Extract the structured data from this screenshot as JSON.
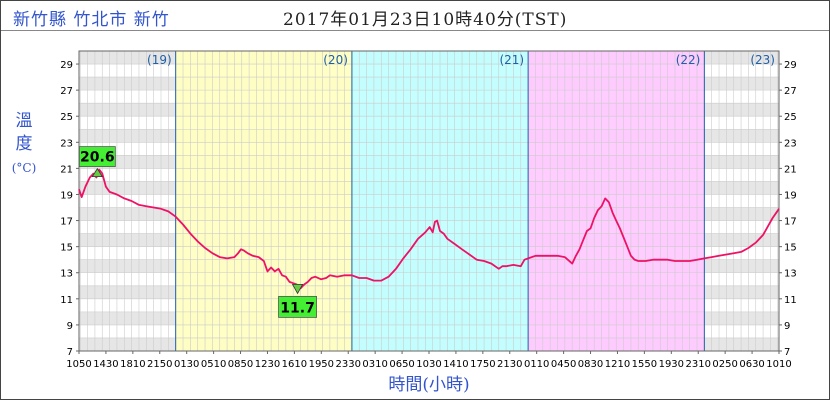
{
  "header": {
    "station": "新竹縣 竹北市 新竹",
    "timestamp": "2017年01月23日10時40分(TST)"
  },
  "chart_data": {
    "type": "line",
    "ylabel_chars": [
      "溫",
      "度"
    ],
    "unit": "(°C)",
    "xlabel": "時間(小時)",
    "ylim": [
      7,
      30
    ],
    "yticks": [
      7,
      9,
      11,
      13,
      15,
      17,
      19,
      21,
      23,
      25,
      27,
      29
    ],
    "xlim_hours": [
      10.833,
      106.167
    ],
    "xticks": [
      {
        "h": 10.833,
        "label": "1050"
      },
      {
        "h": 14.5,
        "label": "1430"
      },
      {
        "h": 18.167,
        "label": "1810"
      },
      {
        "h": 21.833,
        "label": "2150"
      },
      {
        "h": 25.5,
        "label": "0130"
      },
      {
        "h": 29.167,
        "label": "0510"
      },
      {
        "h": 32.833,
        "label": "0850"
      },
      {
        "h": 36.5,
        "label": "1230"
      },
      {
        "h": 40.167,
        "label": "1610"
      },
      {
        "h": 43.833,
        "label": "1950"
      },
      {
        "h": 47.5,
        "label": "2330"
      },
      {
        "h": 51.167,
        "label": "0310"
      },
      {
        "h": 54.833,
        "label": "0650"
      },
      {
        "h": 58.5,
        "label": "1030"
      },
      {
        "h": 62.167,
        "label": "1410"
      },
      {
        "h": 65.833,
        "label": "1750"
      },
      {
        "h": 69.5,
        "label": "2130"
      },
      {
        "h": 73.167,
        "label": "0110"
      },
      {
        "h": 76.833,
        "label": "0450"
      },
      {
        "h": 80.5,
        "label": "0830"
      },
      {
        "h": 84.167,
        "label": "1210"
      },
      {
        "h": 87.833,
        "label": "1550"
      },
      {
        "h": 91.5,
        "label": "1930"
      },
      {
        "h": 95.167,
        "label": "2310"
      },
      {
        "h": 98.833,
        "label": "0250"
      },
      {
        "h": 102.5,
        "label": "0630"
      },
      {
        "h": 106.167,
        "label": "1010"
      }
    ],
    "days": [
      {
        "label": "(19)",
        "start": 10.833,
        "end": 24,
        "color": "#ffffff"
      },
      {
        "label": "(20)",
        "start": 24,
        "end": 48,
        "color": "#ffffc0"
      },
      {
        "label": "(21)",
        "start": 48,
        "end": 72,
        "color": "#c0ffff"
      },
      {
        "label": "(22)",
        "start": 72,
        "end": 96,
        "color": "#ffc8ff"
      },
      {
        "label": "(23)",
        "start": 96,
        "end": 106.167,
        "color": "#ffffff"
      }
    ],
    "series": [
      {
        "color": "#ee1166",
        "points": [
          [
            10.83,
            19.4
          ],
          [
            11.2,
            18.8
          ],
          [
            11.7,
            19.6
          ],
          [
            12.3,
            20.3
          ],
          [
            12.8,
            20.6
          ],
          [
            13.2,
            20.3
          ],
          [
            13.6,
            20.9
          ],
          [
            14.0,
            20.6
          ],
          [
            14.5,
            19.6
          ],
          [
            15.0,
            19.2
          ],
          [
            16.0,
            19.0
          ],
          [
            17.0,
            18.7
          ],
          [
            18.0,
            18.5
          ],
          [
            19.0,
            18.2
          ],
          [
            20.0,
            18.1
          ],
          [
            21.0,
            18.0
          ],
          [
            22.0,
            17.9
          ],
          [
            23.0,
            17.7
          ],
          [
            24.0,
            17.3
          ],
          [
            25.0,
            16.7
          ],
          [
            26.0,
            16.0
          ],
          [
            27.0,
            15.4
          ],
          [
            28.0,
            14.9
          ],
          [
            29.0,
            14.5
          ],
          [
            30.0,
            14.2
          ],
          [
            31.0,
            14.1
          ],
          [
            32.0,
            14.2
          ],
          [
            32.5,
            14.5
          ],
          [
            32.9,
            14.8
          ],
          [
            33.3,
            14.7
          ],
          [
            33.8,
            14.5
          ],
          [
            34.5,
            14.3
          ],
          [
            35.3,
            14.2
          ],
          [
            36.0,
            13.9
          ],
          [
            36.5,
            13.1
          ],
          [
            37.0,
            13.4
          ],
          [
            37.5,
            13.1
          ],
          [
            38.0,
            13.3
          ],
          [
            38.5,
            12.8
          ],
          [
            39.0,
            12.7
          ],
          [
            39.5,
            12.3
          ],
          [
            40.0,
            12.2
          ],
          [
            40.5,
            12.1
          ],
          [
            41.0,
            11.8
          ],
          [
            41.5,
            12.1
          ],
          [
            42.0,
            12.3
          ],
          [
            42.5,
            12.6
          ],
          [
            43.0,
            12.7
          ],
          [
            43.8,
            12.5
          ],
          [
            44.5,
            12.6
          ],
          [
            45.0,
            12.8
          ],
          [
            46.0,
            12.7
          ],
          [
            47.0,
            12.8
          ],
          [
            48.0,
            12.8
          ],
          [
            49.0,
            12.6
          ],
          [
            50.0,
            12.6
          ],
          [
            51.0,
            12.4
          ],
          [
            52.0,
            12.4
          ],
          [
            53.0,
            12.7
          ],
          [
            54.0,
            13.3
          ],
          [
            55.0,
            14.1
          ],
          [
            56.0,
            14.8
          ],
          [
            57.0,
            15.6
          ],
          [
            58.0,
            16.1
          ],
          [
            58.6,
            16.5
          ],
          [
            59.0,
            16.1
          ],
          [
            59.3,
            16.9
          ],
          [
            59.6,
            17.0
          ],
          [
            60.0,
            16.2
          ],
          [
            60.5,
            16.0
          ],
          [
            61.0,
            15.6
          ],
          [
            62.0,
            15.2
          ],
          [
            63.0,
            14.8
          ],
          [
            64.0,
            14.4
          ],
          [
            65.0,
            14.0
          ],
          [
            66.0,
            13.9
          ],
          [
            67.0,
            13.7
          ],
          [
            68.0,
            13.3
          ],
          [
            68.5,
            13.5
          ],
          [
            69.0,
            13.5
          ],
          [
            70.0,
            13.6
          ],
          [
            71.0,
            13.5
          ],
          [
            71.5,
            14.0
          ],
          [
            72.0,
            14.1
          ],
          [
            73.0,
            14.3
          ],
          [
            74.0,
            14.3
          ],
          [
            75.0,
            14.3
          ],
          [
            76.0,
            14.3
          ],
          [
            77.0,
            14.2
          ],
          [
            78.0,
            13.7
          ],
          [
            78.5,
            14.3
          ],
          [
            79.0,
            14.8
          ],
          [
            79.5,
            15.5
          ],
          [
            80.0,
            16.2
          ],
          [
            80.5,
            16.4
          ],
          [
            81.0,
            17.2
          ],
          [
            81.5,
            17.8
          ],
          [
            82.0,
            18.1
          ],
          [
            82.5,
            18.7
          ],
          [
            83.0,
            18.4
          ],
          [
            83.5,
            17.6
          ],
          [
            84.0,
            17.0
          ],
          [
            84.5,
            16.4
          ],
          [
            85.0,
            15.7
          ],
          [
            85.5,
            15.0
          ],
          [
            86.0,
            14.3
          ],
          [
            86.5,
            14.0
          ],
          [
            87.0,
            13.9
          ],
          [
            88.0,
            13.9
          ],
          [
            89.0,
            14.0
          ],
          [
            90.0,
            14.0
          ],
          [
            91.0,
            14.0
          ],
          [
            92.0,
            13.9
          ],
          [
            93.0,
            13.9
          ],
          [
            94.0,
            13.9
          ],
          [
            95.0,
            14.0
          ],
          [
            96.0,
            14.1
          ],
          [
            97.0,
            14.2
          ],
          [
            98.0,
            14.3
          ],
          [
            99.0,
            14.4
          ],
          [
            100.0,
            14.5
          ],
          [
            101.0,
            14.6
          ],
          [
            102.0,
            14.9
          ],
          [
            103.0,
            15.3
          ],
          [
            104.0,
            15.9
          ],
          [
            104.7,
            16.6
          ],
          [
            105.3,
            17.2
          ],
          [
            105.8,
            17.6
          ],
          [
            106.17,
            17.9
          ]
        ]
      }
    ],
    "annotations": [
      {
        "label": "20.6",
        "h": 13.33,
        "y": 20.6,
        "kind": "max",
        "color": "#44ee33"
      },
      {
        "label": "11.7",
        "h": 40.6,
        "y": 11.8,
        "kind": "min",
        "color": "#44ee33"
      }
    ]
  }
}
